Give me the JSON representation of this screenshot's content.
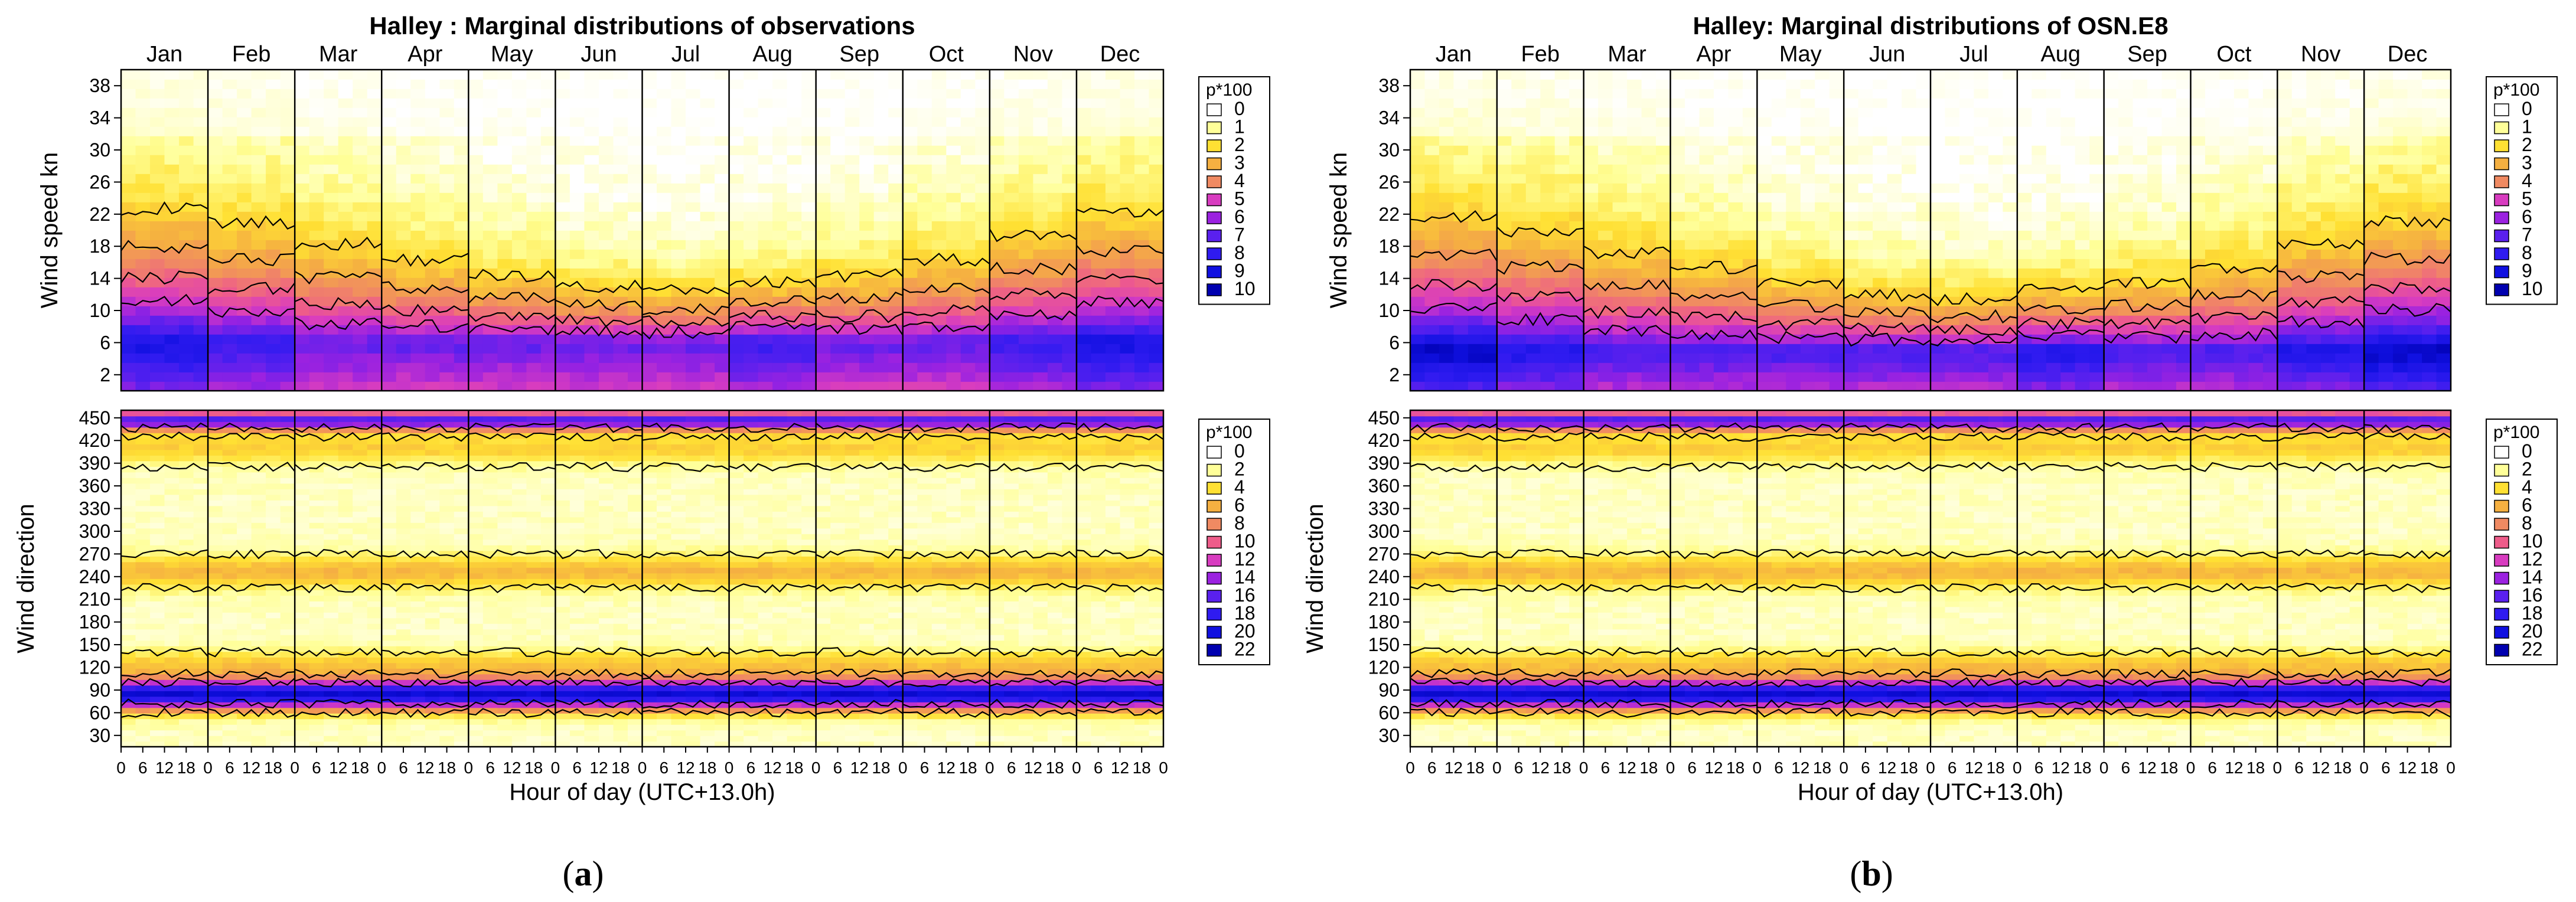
{
  "panels": [
    {
      "id": "a",
      "title": "Halley : Marginal distributions of observations",
      "caption_letter": "a",
      "speed_peak_scale": 1.0
    },
    {
      "id": "b",
      "title": "Halley: Marginal distributions of OSN.E8",
      "caption_letter": "b",
      "speed_peak_scale": 1.08
    }
  ],
  "shared": {
    "months": [
      "Jan",
      "Feb",
      "Mar",
      "Apr",
      "May",
      "Jun",
      "Jul",
      "Aug",
      "Sep",
      "Oct",
      "Nov",
      "Dec"
    ],
    "hour_ticks": [
      "0",
      "6",
      "12",
      "18"
    ],
    "last_hour_tick": "0",
    "xlabel": "Hour of day (UTC+13.0h)",
    "speed_ylabel": "Wind speed kn",
    "direction_ylabel": "Wind direction",
    "speed_ticks": [
      2,
      6,
      10,
      14,
      18,
      22,
      26,
      30,
      34,
      38
    ],
    "direction_ticks": [
      30,
      60,
      90,
      120,
      150,
      180,
      210,
      240,
      270,
      300,
      330,
      360,
      390,
      420,
      450
    ],
    "legend_title": "p*100",
    "speed_legend": [
      "0",
      "1",
      "2",
      "3",
      "4",
      "5",
      "6",
      "7",
      "8",
      "9",
      "10"
    ],
    "direction_legend": [
      "0",
      "2",
      "4",
      "6",
      "8",
      "10",
      "12",
      "14",
      "16",
      "18",
      "20",
      "22"
    ],
    "legend_colors": [
      "#ffffff",
      "#ffff99",
      "#ffe033",
      "#f5b041",
      "#f08a62",
      "#ee5c8a",
      "#d83cc0",
      "#9b22e0",
      "#5a20ee",
      "#2f1bf0",
      "#1010e0",
      "#0000b0"
    ]
  },
  "chart_data": [
    {
      "type": "heatmap",
      "title": "Halley : Marginal distributions of observations",
      "subplot": "wind speed",
      "xlabel": "Hour of day (UTC+13.0h)",
      "ylabel": "Wind speed kn",
      "ylim": [
        0,
        40
      ],
      "facets": [
        "Jan",
        "Feb",
        "Mar",
        "Apr",
        "May",
        "Jun",
        "Jul",
        "Aug",
        "Sep",
        "Oct",
        "Nov",
        "Dec"
      ],
      "xlim_hours": [
        0,
        24
      ],
      "legend": {
        "title": "p*100",
        "levels": [
          0,
          1,
          2,
          3,
          4,
          5,
          6,
          7,
          8,
          9,
          10
        ]
      },
      "mode_speed_kn": 6,
      "peak_p100_by_month": [
        10,
        9,
        8,
        8,
        8,
        8,
        8,
        9,
        8,
        8,
        9,
        10
      ]
    },
    {
      "type": "heatmap",
      "title": "Halley : Marginal distributions of observations",
      "subplot": "wind direction",
      "xlabel": "Hour of day (UTC+13.0h)",
      "ylabel": "Wind direction",
      "ylim": [
        15,
        460
      ],
      "legend": {
        "title": "p*100",
        "levels": [
          0,
          2,
          4,
          6,
          8,
          10,
          12,
          14,
          16,
          18,
          20,
          22
        ]
      },
      "modes_deg": [
        85,
        445,
        245
      ],
      "peak_p100_at_85deg": 22
    },
    {
      "type": "heatmap",
      "title": "Halley: Marginal distributions of OSN.E8",
      "subplot": "wind speed",
      "xlabel": "Hour of day (UTC+13.0h)",
      "ylabel": "Wind speed kn",
      "ylim": [
        0,
        40
      ],
      "legend": {
        "title": "p*100",
        "levels": [
          0,
          1,
          2,
          3,
          4,
          5,
          6,
          7,
          8,
          9,
          10
        ]
      },
      "mode_speed_kn": 5,
      "peak_p100_by_month": [
        10,
        9,
        8,
        8,
        8,
        8,
        8,
        9,
        8,
        8,
        9,
        10
      ]
    },
    {
      "type": "heatmap",
      "title": "Halley: Marginal distributions of OSN.E8",
      "subplot": "wind direction",
      "xlabel": "Hour of day (UTC+13.0h)",
      "ylabel": "Wind direction",
      "ylim": [
        15,
        460
      ],
      "legend": {
        "title": "p*100",
        "levels": [
          0,
          2,
          4,
          6,
          8,
          10,
          12,
          14,
          16,
          18,
          20,
          22
        ]
      },
      "modes_deg": [
        85,
        445,
        245
      ],
      "peak_p100_at_85deg": 22
    }
  ]
}
